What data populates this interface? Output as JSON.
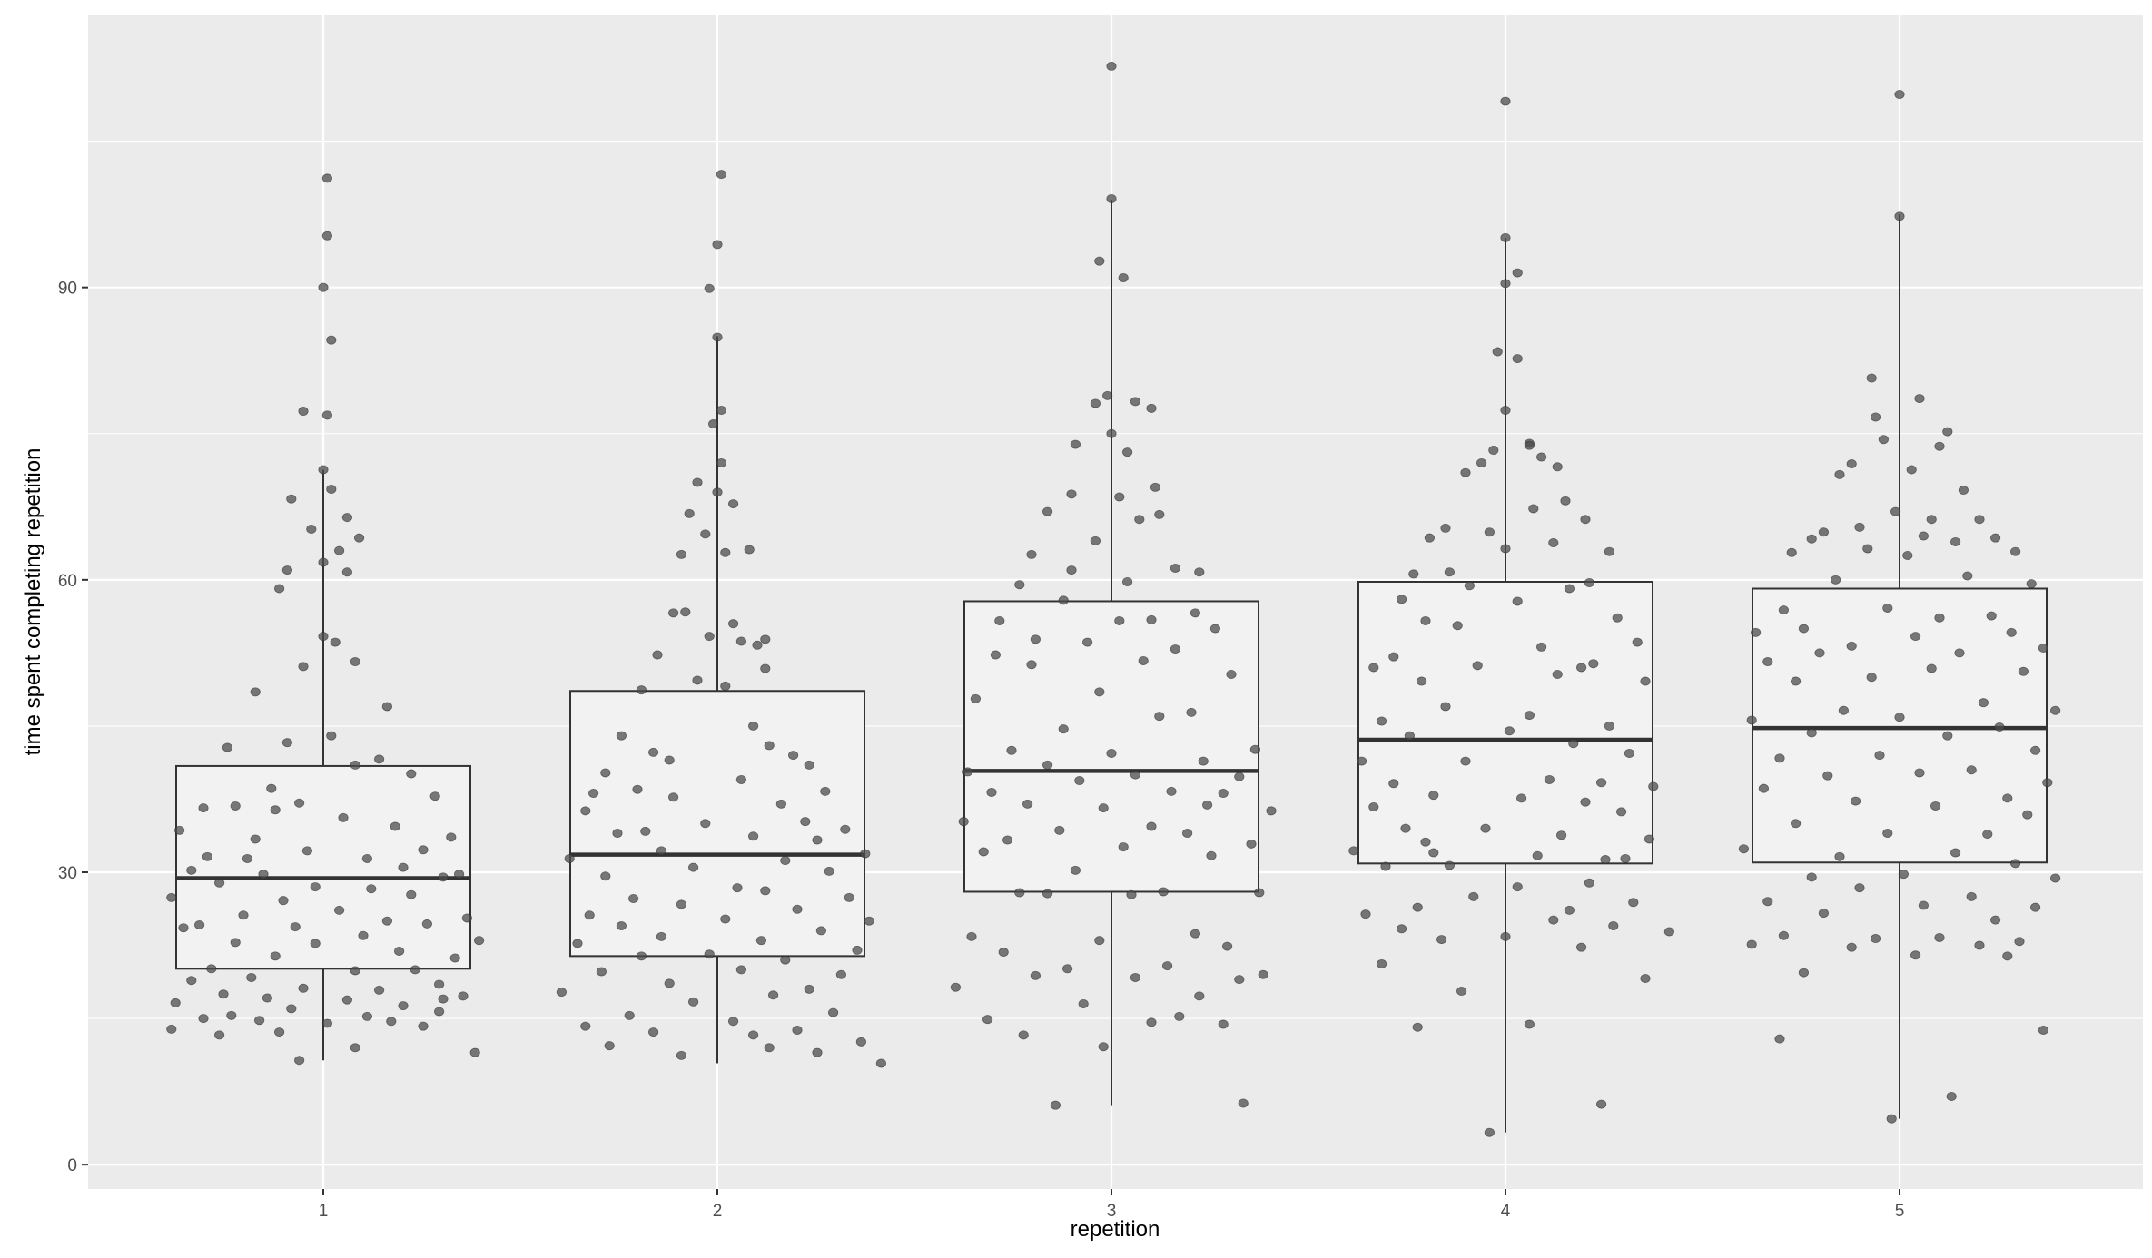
{
  "chart_data": {
    "type": "box",
    "xlabel": "repetition",
    "ylabel": "time spent completing repetition",
    "categories": [
      "1",
      "2",
      "3",
      "4",
      "5"
    ],
    "ylim": [
      -2.5,
      118
    ],
    "yticks": [
      0,
      30,
      60,
      90
    ],
    "grid": true,
    "colors": {
      "panel": "#ebebeb",
      "grid_major": "#ffffff",
      "box_fill": "#f2f2f2",
      "box_stroke": "#333333",
      "point": "#4d4d4d"
    },
    "boxes": [
      {
        "category": "1",
        "q1": 20.1,
        "median": 29.4,
        "q3": 40.9,
        "whisker_low": 10.7,
        "whisker_high": 71.3
      },
      {
        "category": "2",
        "q1": 21.4,
        "median": 31.8,
        "q3": 48.6,
        "whisker_low": 10.4,
        "whisker_high": 85.0
      },
      {
        "category": "3",
        "q1": 28.0,
        "median": 40.4,
        "q3": 57.8,
        "whisker_low": 6.1,
        "whisker_high": 99.0
      },
      {
        "category": "4",
        "q1": 30.9,
        "median": 43.6,
        "q3": 59.8,
        "whisker_low": 3.3,
        "whisker_high": 95.1
      },
      {
        "category": "5",
        "q1": 31.0,
        "median": 44.8,
        "q3": 59.1,
        "whisker_low": 4.7,
        "whisker_high": 97.5
      }
    ],
    "points": [
      {
        "category": "1",
        "jitter": [
          0.01,
          0.01,
          0.0,
          0.02,
          -0.05,
          0.01,
          0.0,
          -0.08,
          0.02,
          -0.03,
          0.06,
          0.04,
          0.09,
          -0.09,
          0.0,
          -0.11,
          0.06,
          0.0,
          0.03,
          0.08,
          -0.05,
          -0.17,
          0.16,
          0.02,
          -0.09,
          -0.24,
          0.14,
          0.08,
          0.22,
          -0.13,
          0.28,
          -0.06,
          -0.22,
          -0.3,
          -0.12,
          0.05,
          0.18,
          -0.36,
          0.32,
          -0.17,
          -0.04,
          0.25,
          -0.29,
          0.11,
          -0.19,
          0.2,
          -0.33,
          0.34,
          -0.15,
          0.3,
          -0.26,
          -0.02,
          0.12,
          0.22,
          -0.38,
          -0.1,
          0.04,
          -0.2,
          0.16,
          0.36,
          -0.31,
          0.26,
          -0.07,
          -0.35,
          0.1,
          0.39,
          -0.22,
          -0.02,
          0.19,
          -0.12,
          0.33,
          -0.28,
          0.23,
          0.08,
          -0.18,
          -0.33,
          0.29,
          -0.05,
          0.14,
          -0.25,
          0.35,
          -0.14,
          0.06,
          -0.37,
          0.2,
          -0.08,
          0.29,
          -0.23,
          0.11,
          -0.3,
          -0.16,
          0.17,
          0.01,
          0.25,
          -0.38,
          -0.11,
          -0.26,
          0.08,
          0.38,
          -0.06,
          0.3
        ],
        "values": [
          101.2,
          95.3,
          90.0,
          84.6,
          77.3,
          76.9,
          71.3,
          68.3,
          69.3,
          65.2,
          66.4,
          63.0,
          64.3,
          61.0,
          61.8,
          59.1,
          60.8,
          54.2,
          53.6,
          51.6,
          51.1,
          48.5,
          47.0,
          44.0,
          43.3,
          42.8,
          41.6,
          41.0,
          40.1,
          38.6,
          37.8,
          37.1,
          36.8,
          36.6,
          36.4,
          35.6,
          34.7,
          34.3,
          33.6,
          33.4,
          32.2,
          32.3,
          31.6,
          31.4,
          31.4,
          30.5,
          30.2,
          29.8,
          29.8,
          29.5,
          28.9,
          28.5,
          28.3,
          27.7,
          27.4,
          27.1,
          26.1,
          25.6,
          25.0,
          25.3,
          24.6,
          24.7,
          24.4,
          24.3,
          23.5,
          23.0,
          22.8,
          22.7,
          21.9,
          21.4,
          21.2,
          20.1,
          20.0,
          19.9,
          19.2,
          18.9,
          18.5,
          18.1,
          17.9,
          17.5,
          17.3,
          17.1,
          16.9,
          16.6,
          16.3,
          16.0,
          15.7,
          15.3,
          15.2,
          15.0,
          14.8,
          14.7,
          14.5,
          14.2,
          13.9,
          13.6,
          13.3,
          12.0,
          11.5,
          10.7,
          17.0
        ]
      },
      {
        "category": "2",
        "jitter": [
          0.01,
          0.0,
          -0.02,
          0.0,
          0.01,
          -0.01,
          0.01,
          -0.05,
          0.0,
          0.04,
          -0.07,
          -0.03,
          0.08,
          0.02,
          -0.09,
          -0.08,
          -0.11,
          0.04,
          -0.02,
          0.12,
          0.06,
          0.1,
          -0.15,
          0.12,
          -0.05,
          0.02,
          -0.19,
          0.09,
          -0.24,
          0.13,
          -0.16,
          0.19,
          -0.12,
          0.23,
          -0.28,
          0.06,
          -0.2,
          -0.31,
          0.27,
          -0.11,
          0.16,
          -0.33,
          0.22,
          -0.03,
          0.32,
          -0.18,
          -0.25,
          0.09,
          0.25,
          -0.14,
          0.37,
          -0.37,
          0.17,
          -0.06,
          0.28,
          -0.28,
          0.05,
          0.12,
          -0.21,
          0.33,
          -0.09,
          0.2,
          -0.32,
          0.02,
          0.38,
          -0.24,
          0.26,
          -0.14,
          0.11,
          -0.35,
          0.35,
          -0.02,
          -0.19,
          0.17,
          0.06,
          -0.29,
          0.31,
          -0.12,
          0.23,
          -0.39,
          0.14,
          -0.06,
          0.29,
          -0.22,
          0.04,
          -0.33,
          0.2,
          -0.16,
          0.09,
          0.36,
          -0.27,
          0.13,
          0.25,
          -0.09,
          0.41
        ],
        "values": [
          101.6,
          94.4,
          89.9,
          84.9,
          77.4,
          76.0,
          72.0,
          70.0,
          69.0,
          67.8,
          66.8,
          64.7,
          63.1,
          62.8,
          62.6,
          56.7,
          56.6,
          55.5,
          54.2,
          53.9,
          53.7,
          53.3,
          52.3,
          50.9,
          49.7,
          49.1,
          48.7,
          45.0,
          44.0,
          43.0,
          42.3,
          42.0,
          41.5,
          41.0,
          40.2,
          39.5,
          38.5,
          38.1,
          38.3,
          37.7,
          37.0,
          36.3,
          35.2,
          35.0,
          34.4,
          34.2,
          34.0,
          33.7,
          33.3,
          32.2,
          31.9,
          31.4,
          31.2,
          30.5,
          30.1,
          29.6,
          28.4,
          28.1,
          27.3,
          27.4,
          26.7,
          26.2,
          25.6,
          25.2,
          25.0,
          24.5,
          24.0,
          23.4,
          23.0,
          22.7,
          22.0,
          21.6,
          21.4,
          21.0,
          20.0,
          19.8,
          19.5,
          18.6,
          18.0,
          17.7,
          17.4,
          16.7,
          15.6,
          15.3,
          14.7,
          14.2,
          13.8,
          13.6,
          13.3,
          12.6,
          12.2,
          12.0,
          11.5,
          11.2,
          10.4
        ]
      },
      {
        "category": "3",
        "jitter": [
          0.0,
          0.0,
          -0.03,
          0.03,
          -0.01,
          0.06,
          -0.04,
          0.1,
          0.0,
          -0.09,
          0.04,
          0.11,
          -0.1,
          0.02,
          -0.16,
          0.12,
          0.07,
          -0.04,
          -0.2,
          0.16,
          -0.1,
          0.22,
          0.04,
          -0.23,
          -0.12,
          0.21,
          0.1,
          -0.28,
          0.02,
          0.26,
          -0.19,
          -0.06,
          0.16,
          -0.29,
          0.08,
          -0.2,
          0.3,
          -0.03,
          -0.34,
          0.2,
          0.12,
          -0.12,
          0.36,
          -0.25,
          0.0,
          0.23,
          -0.16,
          -0.36,
          0.06,
          0.32,
          -0.08,
          0.15,
          -0.3,
          0.28,
          -0.21,
          -0.02,
          0.4,
          -0.37,
          0.1,
          -0.13,
          0.19,
          -0.26,
          0.35,
          0.03,
          -0.32,
          0.25,
          -0.09,
          0.13,
          -0.23,
          0.37,
          -0.16,
          0.05,
          0.21,
          -0.35,
          -0.03,
          0.29,
          -0.27,
          0.14,
          -0.11,
          0.38,
          -0.19,
          0.06,
          0.32,
          -0.39,
          0.22,
          -0.07,
          0.17,
          -0.31,
          0.1,
          0.28,
          -0.22,
          -0.02,
          0.33,
          -0.14,
          0.24
        ],
        "values": [
          112.7,
          99.1,
          92.7,
          91.0,
          78.9,
          78.3,
          78.1,
          77.6,
          75.0,
          73.9,
          73.1,
          69.5,
          68.8,
          68.5,
          67.0,
          66.7,
          66.2,
          64.0,
          62.6,
          61.2,
          61.0,
          60.8,
          59.8,
          59.5,
          57.9,
          56.6,
          55.9,
          55.8,
          55.8,
          55.0,
          53.9,
          53.6,
          52.9,
          52.3,
          51.7,
          51.3,
          50.3,
          48.5,
          47.8,
          46.4,
          46.0,
          44.7,
          42.6,
          42.5,
          42.2,
          41.4,
          41.0,
          40.3,
          40.0,
          39.8,
          39.4,
          38.3,
          38.2,
          38.1,
          37.0,
          36.6,
          36.3,
          35.2,
          34.7,
          34.3,
          34.0,
          33.3,
          32.9,
          32.6,
          32.1,
          31.7,
          30.2,
          28.0,
          27.9,
          27.9,
          27.8,
          27.7,
          23.7,
          23.4,
          23.0,
          22.4,
          21.8,
          20.4,
          20.1,
          19.5,
          19.4,
          19.2,
          19.0,
          18.2,
          17.3,
          16.5,
          15.2,
          14.9,
          14.6,
          14.4,
          13.3,
          12.1,
          6.3,
          6.1,
          36.9
        ]
      },
      {
        "category": "4",
        "jitter": [
          0.0,
          0.0,
          0.03,
          0.0,
          -0.02,
          0.03,
          0.0,
          0.06,
          0.06,
          -0.03,
          0.09,
          -0.06,
          0.13,
          -0.1,
          0.15,
          0.07,
          -0.15,
          0.2,
          -0.04,
          -0.19,
          0.12,
          0.0,
          0.26,
          -0.14,
          -0.23,
          0.21,
          -0.09,
          0.16,
          -0.26,
          0.03,
          0.28,
          -0.2,
          -0.12,
          0.33,
          0.09,
          -0.28,
          0.22,
          -0.07,
          -0.33,
          0.19,
          0.13,
          -0.21,
          0.35,
          -0.15,
          0.06,
          -0.31,
          0.26,
          0.01,
          -0.24,
          0.17,
          0.31,
          -0.36,
          -0.1,
          0.11,
          0.24,
          -0.28,
          0.37,
          -0.18,
          0.04,
          0.2,
          -0.33,
          0.29,
          -0.05,
          -0.25,
          0.14,
          0.36,
          -0.2,
          -0.38,
          0.08,
          0.25,
          -0.14,
          -0.3,
          0.21,
          0.03,
          -0.08,
          0.32,
          -0.22,
          0.16,
          -0.35,
          0.12,
          0.27,
          -0.26,
          0.41,
          0.0,
          -0.16,
          0.19,
          -0.31,
          0.35,
          -0.11,
          0.06,
          -0.22,
          0.24,
          -0.04,
          0.3,
          -0.18
        ],
        "values": [
          109.1,
          95.1,
          91.5,
          90.4,
          83.4,
          82.7,
          77.4,
          74.0,
          73.8,
          73.3,
          72.6,
          72.0,
          71.6,
          71.0,
          68.1,
          67.3,
          65.3,
          66.2,
          64.9,
          64.3,
          63.8,
          63.2,
          62.9,
          60.8,
          60.6,
          59.7,
          59.4,
          59.1,
          58.0,
          57.8,
          56.1,
          55.8,
          55.3,
          53.6,
          53.1,
          52.1,
          51.4,
          51.2,
          51.0,
          51.0,
          50.3,
          49.6,
          49.6,
          47.0,
          46.1,
          45.5,
          45.0,
          44.5,
          44.0,
          43.2,
          42.2,
          41.4,
          41.4,
          39.5,
          39.2,
          39.1,
          38.8,
          37.9,
          37.6,
          37.2,
          36.7,
          36.2,
          34.5,
          34.5,
          33.8,
          33.4,
          33.1,
          32.2,
          31.7,
          31.3,
          30.7,
          30.6,
          28.9,
          28.5,
          27.5,
          26.9,
          26.4,
          26.1,
          25.7,
          25.1,
          24.5,
          24.2,
          23.9,
          23.4,
          23.1,
          22.3,
          20.6,
          19.1,
          17.8,
          14.4,
          14.1,
          6.2,
          3.3,
          31.4,
          32.0
        ]
      },
      {
        "category": "5",
        "jitter": [
          0.0,
          0.0,
          -0.07,
          0.05,
          -0.06,
          0.12,
          -0.04,
          0.1,
          -0.12,
          0.03,
          -0.15,
          0.16,
          -0.01,
          0.08,
          0.2,
          -0.1,
          -0.19,
          0.06,
          0.24,
          -0.22,
          0.14,
          -0.08,
          0.29,
          -0.27,
          0.02,
          0.17,
          -0.16,
          0.33,
          -0.03,
          -0.29,
          0.23,
          0.1,
          -0.24,
          -0.36,
          0.28,
          0.04,
          -0.12,
          0.36,
          -0.2,
          0.15,
          -0.33,
          0.08,
          0.31,
          -0.07,
          -0.26,
          0.21,
          0.39,
          -0.14,
          0.0,
          -0.37,
          0.25,
          0.12,
          -0.22,
          0.34,
          -0.05,
          -0.3,
          0.18,
          0.05,
          -0.18,
          0.37,
          -0.34,
          0.27,
          -0.11,
          0.09,
          0.32,
          -0.26,
          -0.03,
          0.22,
          -0.39,
          0.14,
          -0.15,
          0.29,
          0.01,
          -0.22,
          0.39,
          -0.1,
          0.18,
          -0.33,
          0.06,
          0.34,
          -0.19,
          0.24,
          -0.29,
          0.1,
          -0.06,
          0.3,
          -0.37,
          0.2,
          -0.12,
          0.04,
          0.27,
          -0.24,
          0.36,
          -0.3,
          0.13,
          -0.02
        ],
        "values": [
          109.8,
          97.3,
          80.7,
          78.6,
          76.7,
          75.2,
          74.4,
          73.7,
          71.9,
          71.3,
          70.8,
          69.2,
          67.0,
          66.2,
          66.2,
          65.4,
          64.9,
          64.5,
          64.3,
          64.2,
          63.9,
          63.2,
          62.9,
          62.8,
          62.5,
          60.4,
          60.0,
          59.6,
          57.1,
          56.9,
          56.3,
          56.1,
          55.0,
          54.6,
          54.6,
          54.2,
          53.2,
          53.0,
          52.5,
          52.5,
          51.6,
          50.9,
          50.6,
          50.0,
          49.6,
          47.4,
          46.6,
          46.6,
          45.9,
          45.6,
          44.9,
          44.0,
          44.3,
          42.5,
          42.0,
          41.7,
          40.5,
          40.2,
          39.9,
          39.2,
          38.6,
          37.6,
          37.3,
          36.8,
          35.9,
          35.0,
          34.0,
          33.9,
          32.4,
          32.0,
          31.6,
          30.9,
          29.8,
          29.5,
          29.4,
          28.4,
          27.5,
          27.0,
          26.6,
          26.4,
          25.8,
          25.1,
          23.5,
          23.3,
          23.2,
          22.9,
          22.6,
          22.5,
          22.3,
          21.5,
          21.4,
          19.7,
          13.8,
          12.9,
          7.0,
          4.7
        ]
      }
    ]
  }
}
